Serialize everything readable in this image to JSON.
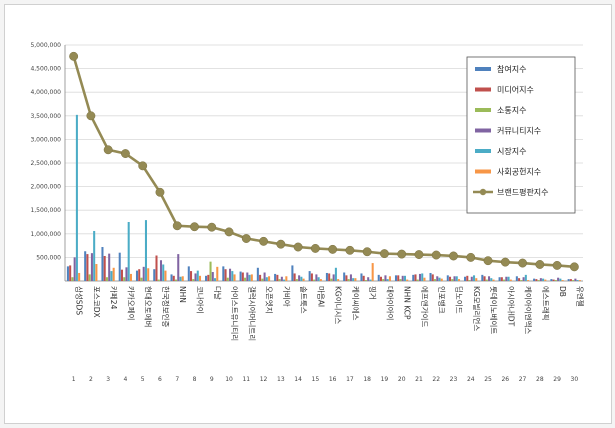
{
  "chart_data": {
    "type": "bar",
    "ylim": [
      0,
      5000000
    ],
    "y_ticks": [
      "5,000,000",
      "4,500,000",
      "4,000,000",
      "3,500,000",
      "3,000,000",
      "2,500,000",
      "2,000,000",
      "1,500,000",
      "1,000,000",
      "500,000",
      ""
    ],
    "grid": true,
    "legend_position": "top-right",
    "categories": [
      "삼성SDS",
      "포스코DX",
      "카페24",
      "카카오페이",
      "현대오토에버",
      "한국정보인증",
      "NHN",
      "코나아이",
      "다날",
      "아이스트유니티리",
      "갤럭시아머니트리",
      "오픈엣지",
      "가비아",
      "솔트룩스",
      "마음AI",
      "KG이니시스",
      "케이씨에스",
      "핑거",
      "대아이아이",
      "NHN KCP",
      "에프앤가이드",
      "인포뱅크",
      "딥노이드",
      "KG모빌리언스",
      "롯데이노베이트",
      "아시아나IDT",
      "케이아이엔엑스",
      "에스트래픽",
      "DB",
      "유엔젤"
    ],
    "numbers": [
      "1",
      "2",
      "3",
      "4",
      "5",
      "6",
      "7",
      "8",
      "9",
      "10",
      "11",
      "12",
      "13",
      "14",
      "15",
      "16",
      "17",
      "18",
      "19",
      "20",
      "21",
      "22",
      "23",
      "24",
      "25",
      "26",
      "27",
      "28",
      "29",
      "30"
    ],
    "series": [
      {
        "name": "참여지수",
        "color": "#4f81bd",
        "values": [
          310000,
          630000,
          720000,
          600000,
          220000,
          250000,
          140000,
          310000,
          110000,
          310000,
          200000,
          280000,
          150000,
          330000,
          210000,
          170000,
          180000,
          160000,
          130000,
          120000,
          130000,
          170000,
          120000,
          90000,
          130000,
          80000,
          100000,
          50000,
          40000,
          40000
        ]
      },
      {
        "name": "미디어지수",
        "color": "#c0504d",
        "values": [
          330000,
          570000,
          530000,
          240000,
          250000,
          540000,
          110000,
          210000,
          130000,
          250000,
          180000,
          130000,
          130000,
          160000,
          160000,
          160000,
          120000,
          110000,
          90000,
          120000,
          140000,
          140000,
          90000,
          110000,
          100000,
          80000,
          60000,
          40000,
          30000,
          40000
        ]
      },
      {
        "name": "소통지수",
        "color": "#9bbb59",
        "values": [
          80000,
          140000,
          80000,
          80000,
          70000,
          30000,
          30000,
          40000,
          410000,
          70000,
          70000,
          50000,
          40000,
          40000,
          30000,
          50000,
          40000,
          20000,
          40000,
          40000,
          30000,
          40000,
          40000,
          20000,
          30000,
          30000,
          20000,
          20000,
          20000,
          20000
        ]
      },
      {
        "name": "커뮤니티지수",
        "color": "#8064a2",
        "values": [
          500000,
          590000,
          580000,
          290000,
          300000,
          440000,
          570000,
          160000,
          190000,
          260000,
          180000,
          180000,
          90000,
          120000,
          140000,
          140000,
          140000,
          80000,
          120000,
          110000,
          150000,
          100000,
          100000,
          90000,
          100000,
          90000,
          80000,
          60000,
          70000,
          50000
        ]
      },
      {
        "name": "시장지수",
        "color": "#4bacc6",
        "values": [
          3520000,
          1060000,
          210000,
          1250000,
          1290000,
          350000,
          90000,
          220000,
          60000,
          210000,
          130000,
          80000,
          30000,
          90000,
          80000,
          280000,
          60000,
          30000,
          40000,
          110000,
          160000,
          70000,
          100000,
          120000,
          60000,
          90000,
          130000,
          50000,
          50000,
          20000
        ]
      },
      {
        "name": "사회공헌지수",
        "color": "#f79646",
        "values": [
          170000,
          360000,
          280000,
          150000,
          270000,
          220000,
          100000,
          110000,
          300000,
          140000,
          140000,
          100000,
          100000,
          50000,
          40000,
          40000,
          60000,
          380000,
          100000,
          30000,
          70000,
          50000,
          40000,
          60000,
          30000,
          30000,
          20000,
          30000,
          20000,
          20000
        ]
      }
    ],
    "line_series": {
      "name": "브랜드평판지수",
      "color": "#948a54",
      "values": [
        4760000,
        3500000,
        2780000,
        2700000,
        2440000,
        1880000,
        1170000,
        1150000,
        1140000,
        1040000,
        900000,
        840000,
        780000,
        720000,
        690000,
        670000,
        650000,
        620000,
        580000,
        570000,
        560000,
        550000,
        530000,
        500000,
        430000,
        400000,
        380000,
        350000,
        330000,
        300000
      ]
    }
  }
}
